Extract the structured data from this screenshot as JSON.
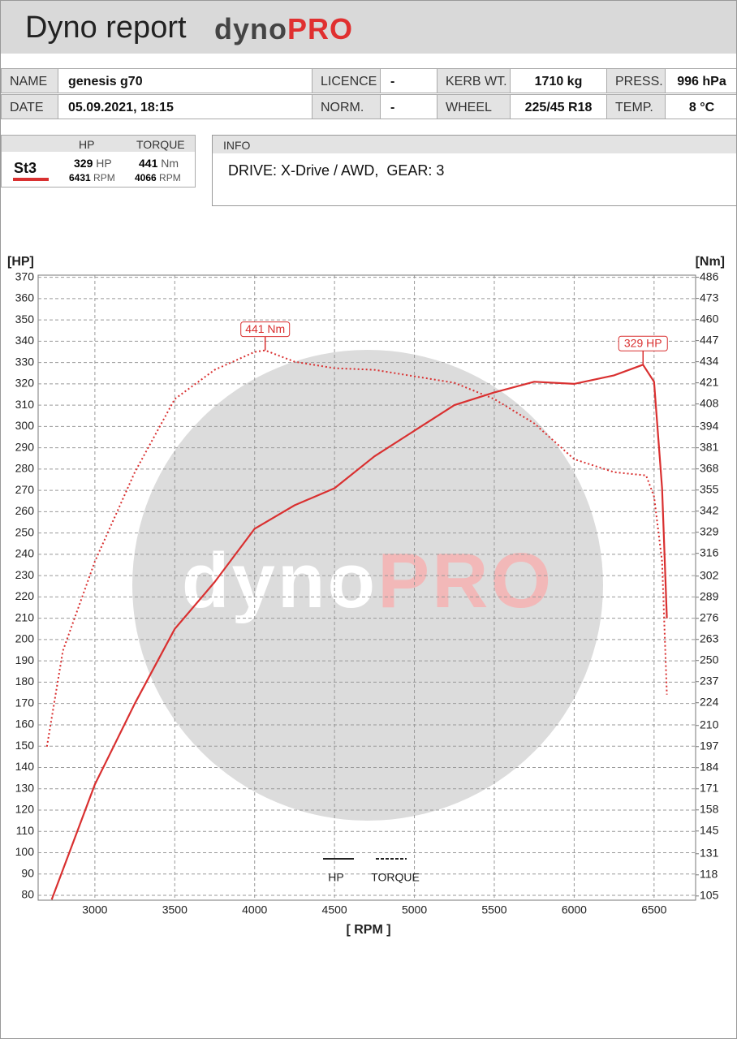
{
  "header": {
    "title": "Dyno report",
    "logo_dyno": "dyno",
    "logo_pro": "PRO"
  },
  "table": {
    "rows": [
      [
        "NAME",
        "genesis g70",
        "LICENCE",
        "-",
        "KERB WT.",
        "1710 kg",
        "PRESS.",
        "996 hPa"
      ],
      [
        "DATE",
        "05.09.2021, 18:15",
        "NORM.",
        "-",
        "WHEEL",
        "225/45 R18",
        "TEMP.",
        "8 °C"
      ]
    ]
  },
  "summary": {
    "headers": [
      "HP",
      "TORQUE"
    ],
    "run": "St3",
    "hp": 329,
    "hp_unit": "HP",
    "torque": 441,
    "torque_unit": "Nm",
    "hp_rpm": 6431,
    "torque_rpm": 4066,
    "rpm_unit": "RPM"
  },
  "info": {
    "title": "INFO",
    "text": "DRIVE: X-Drive / AWD,  GEAR: 3"
  },
  "chart_data": {
    "type": "line",
    "y_label": "[HP]",
    "y2_label": "[Nm]",
    "x_label": "[ RPM ]",
    "watermark": {
      "dyno": "dyno",
      "pro": "PRO"
    },
    "xlim": [
      2645,
      6760
    ],
    "xticks": [
      3000,
      3500,
      4000,
      4500,
      5000,
      5500,
      6000,
      6500
    ],
    "ylim": [
      77.7,
      371
    ],
    "yticks": [
      80,
      90,
      100,
      110,
      120,
      130,
      140,
      150,
      160,
      170,
      180,
      190,
      200,
      210,
      220,
      230,
      240,
      250,
      260,
      270,
      280,
      290,
      300,
      310,
      320,
      330,
      340,
      350,
      360,
      370
    ],
    "y2lim": [
      102.4,
      487.3
    ],
    "y2ticks": [
      105,
      118,
      131,
      145,
      158,
      171,
      184,
      197,
      210,
      224,
      237,
      250,
      263,
      276,
      289,
      302,
      316,
      329,
      342,
      355,
      368,
      381,
      394,
      408,
      421,
      434,
      447,
      460,
      473,
      486
    ],
    "grid": true,
    "legend": "bottom",
    "series": [
      {
        "name": "HP",
        "color": "#d93030",
        "style": "solid",
        "x": [
          2730,
          3000,
          3250,
          3500,
          3750,
          4000,
          4250,
          4500,
          4750,
          5000,
          5250,
          5500,
          5750,
          6000,
          6250,
          6431,
          6500,
          6550,
          6580
        ],
        "values": [
          78,
          132,
          170,
          205,
          227,
          252,
          263,
          271,
          286,
          298,
          310,
          316,
          321,
          320,
          324,
          329,
          321,
          271,
          210
        ]
      },
      {
        "name": "TORQUE",
        "color": "#d93030",
        "style": "dotted",
        "axis": "y2",
        "x": [
          2700,
          2800,
          3000,
          3250,
          3500,
          3750,
          4000,
          4066,
          4250,
          4500,
          4750,
          5000,
          5250,
          5500,
          5750,
          6000,
          6250,
          6450,
          6500,
          6550,
          6580
        ],
        "values": [
          197,
          256,
          311,
          366,
          411,
          429,
          440,
          441,
          434,
          430,
          429,
          425,
          421,
          411,
          396,
          374,
          366,
          364,
          351,
          311,
          229
        ]
      }
    ],
    "annotations": [
      {
        "text": "441 Nm",
        "x": 4066,
        "y": 441,
        "axis": "y2"
      },
      {
        "text": "329 HP",
        "x": 6431,
        "y": 329
      }
    ]
  }
}
